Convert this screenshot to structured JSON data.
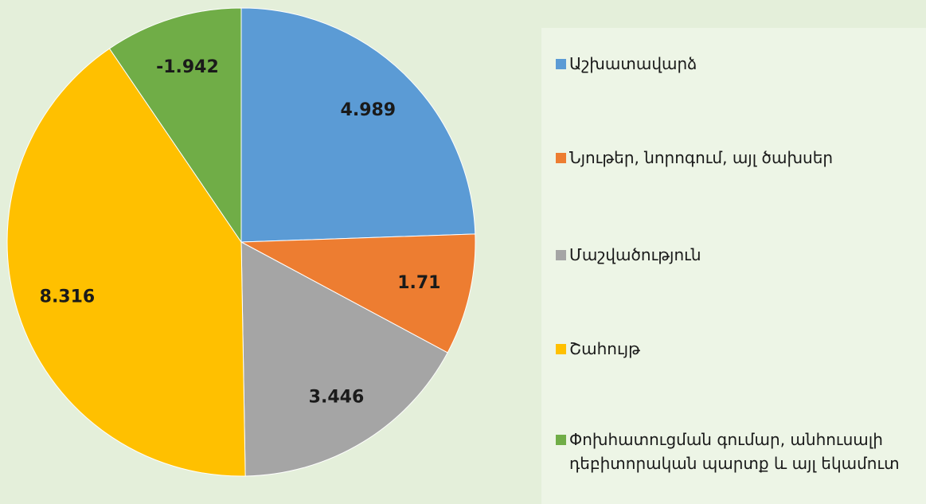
{
  "chart_data": {
    "type": "pie",
    "categories": [
      "Աշխատավարձ",
      "Նյութեր, նորոգում, այլ ծախսեր",
      "Մաշվածություն",
      "Շահույթ",
      "Փոխհատուցման գումար, անհուսալի դեբիտորական պարտք և այլ եկամուտ"
    ],
    "values": [
      4.989,
      1.71,
      3.446,
      8.316,
      -1.942
    ],
    "colors": [
      "#5b9bd5",
      "#ed7d31",
      "#a5a5a5",
      "#ffc000",
      "#70ad47"
    ],
    "legend": "right"
  }
}
